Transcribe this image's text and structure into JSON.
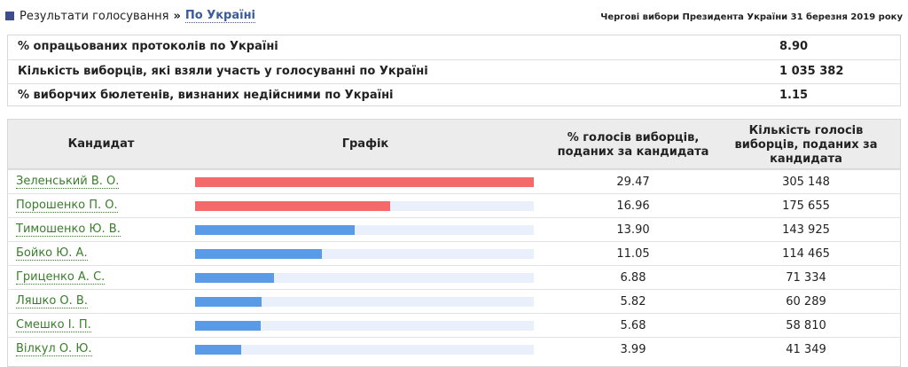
{
  "breadcrumb": {
    "root": "Результати голосування",
    "separator": "»",
    "current": "По Україні"
  },
  "election_title": "Чергові вибори Президента України 31 березня 2019 року",
  "summary": [
    {
      "label": "% опрацьованих протоколів по Україні",
      "value": "8.90"
    },
    {
      "label": "Кількість виборців, які взяли участь у голосуванні по Україні",
      "value": "1 035 382"
    },
    {
      "label": "% виборчих бюлетенів, визнаних недійсними по Україні",
      "value": "1.15"
    }
  ],
  "table": {
    "headers": {
      "candidate": "Кандидат",
      "chart": "Графік",
      "percent": "% голосів виборців, поданих за кандидата",
      "count": "Кількість голосів виборців, поданих за кандидата"
    },
    "rows": [
      {
        "name": "Зеленський В. О.",
        "percent": "29.47",
        "count": "305 148"
      },
      {
        "name": "Порошенко П. О.",
        "percent": "16.96",
        "count": "175 655"
      },
      {
        "name": "Тимошенко Ю. В.",
        "percent": "13.90",
        "count": "143 925"
      },
      {
        "name": "Бойко Ю. А.",
        "percent": "11.05",
        "count": "114 465"
      },
      {
        "name": "Гриценко А. С.",
        "percent": "6.88",
        "count": "71 334"
      },
      {
        "name": "Ляшко О. В.",
        "percent": "5.82",
        "count": "60 289"
      },
      {
        "name": "Смешко І. П.",
        "percent": "5.68",
        "count": "58 810"
      },
      {
        "name": "Вілкул О. Ю.",
        "percent": "3.99",
        "count": "41 349"
      }
    ]
  },
  "colors": {
    "top_two_bar": "#f46a6a",
    "other_bar": "#5a9be8",
    "bar_track": "#eaf0fb",
    "candidate_link": "#3a7d2c"
  }
}
